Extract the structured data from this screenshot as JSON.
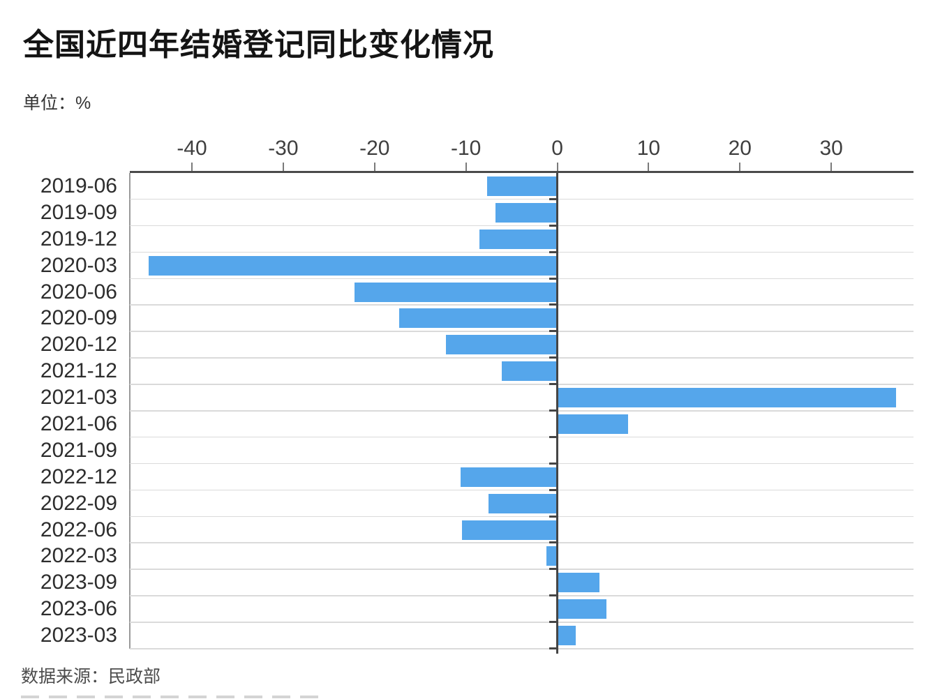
{
  "header": {
    "title": "全国近四年结婚登记同比变化情况",
    "unit_label": "单位：%"
  },
  "footer": {
    "source_label": "数据来源：民政部"
  },
  "chart_data": {
    "type": "bar",
    "orientation": "horizontal",
    "title": "全国近四年结婚登记同比变化情况",
    "unit": "%",
    "source": "数据来源：民政部",
    "categories": [
      "2019-06",
      "2019-09",
      "2019-12",
      "2020-03",
      "2020-06",
      "2020-09",
      "2020-12",
      "2021-12",
      "2021-03",
      "2021-06",
      "2021-09",
      "2022-12",
      "2022-09",
      "2022-06",
      "2022-03",
      "2023-09",
      "2023-06",
      "2023-03"
    ],
    "values": [
      -7.7,
      -6.8,
      -8.5,
      -44.7,
      -22.2,
      -17.3,
      -12.2,
      -6.1,
      37.0,
      7.6,
      -0.1,
      -10.6,
      -7.5,
      -10.4,
      -1.2,
      4.5,
      5.3,
      1.9
    ],
    "x_ticks": [
      -40,
      -30,
      -20,
      -10,
      0,
      10,
      20,
      30
    ],
    "xlim": [
      -46.8,
      39.0
    ],
    "grid": "horizontal",
    "legend": "none",
    "bar_color": "#55a6eb",
    "grid_color": "#dadada",
    "axis_color": "#454545"
  }
}
